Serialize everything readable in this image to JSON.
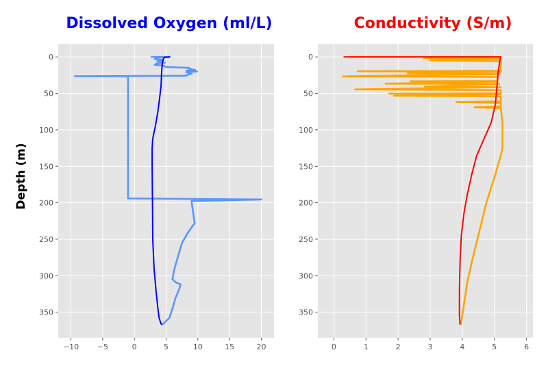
{
  "chart_data": [
    {
      "type": "line",
      "title": "Dissolved Oxygen (ml/L)",
      "title_color": "#0000ff",
      "ylabel": "Depth (m)",
      "xlabel": "",
      "xlim": [
        -12,
        22
      ],
      "ylim": [
        385,
        -18
      ],
      "y_inverted": true,
      "grid": true,
      "xticks": [
        -10,
        -5,
        0,
        5,
        10,
        15,
        20
      ],
      "yticks": [
        0,
        50,
        100,
        150,
        200,
        250,
        300,
        350
      ],
      "series": [
        {
          "color": "#5b96ff",
          "points": [
            [
              2.6,
              0
            ],
            [
              5.6,
              0
            ],
            [
              3.5,
              1
            ],
            [
              3.2,
              3
            ],
            [
              4.5,
              4
            ],
            [
              3.6,
              6
            ],
            [
              4.8,
              8
            ],
            [
              3.5,
              9
            ],
            [
              3.2,
              11
            ],
            [
              4.6,
              12
            ],
            [
              5.0,
              14
            ],
            [
              8.6,
              15
            ],
            [
              8.5,
              16
            ],
            [
              9.6,
              18
            ],
            [
              8.2,
              19
            ],
            [
              9.9,
              20
            ],
            [
              8.2,
              21
            ],
            [
              9.0,
              23
            ],
            [
              8.2,
              25
            ],
            [
              8.2,
              26
            ],
            [
              -9.4,
              26.5
            ],
            [
              -1,
              27
            ],
            [
              -1,
              80
            ],
            [
              -1,
              194
            ],
            [
              20,
              195.5
            ],
            [
              15,
              196.5
            ],
            [
              9,
              197.5
            ],
            [
              9.2,
              210
            ],
            [
              9.5,
              228
            ],
            [
              8.5,
              240
            ],
            [
              7.5,
              255
            ],
            [
              7.0,
              270
            ],
            [
              6.5,
              285
            ],
            [
              6.2,
              295
            ],
            [
              6.0,
              305
            ],
            [
              6.5,
              309
            ],
            [
              7.3,
              312
            ],
            [
              7.0,
              320
            ],
            [
              6.5,
              330
            ],
            [
              6.0,
              345
            ],
            [
              5.5,
              358
            ],
            [
              5.0,
              362
            ],
            [
              4.5,
              366
            ],
            [
              4.3,
              367
            ]
          ]
        },
        {
          "color": "#0000ff",
          "points": [
            [
              5.6,
              0
            ],
            [
              4.8,
              0.5
            ],
            [
              4.6,
              2
            ],
            [
              4.5,
              5
            ],
            [
              4.4,
              10
            ],
            [
              4.3,
              20
            ],
            [
              4.2,
              40
            ],
            [
              4.0,
              55
            ],
            [
              3.7,
              75
            ],
            [
              3.3,
              95
            ],
            [
              2.9,
              112
            ],
            [
              2.8,
              125
            ],
            [
              2.8,
              150
            ],
            [
              2.85,
              200
            ],
            [
              2.9,
              250
            ],
            [
              3.1,
              290
            ],
            [
              3.4,
              320
            ],
            [
              3.7,
              345
            ],
            [
              3.9,
              358
            ],
            [
              4.2,
              366
            ],
            [
              4.4,
              367
            ]
          ]
        }
      ]
    },
    {
      "type": "line",
      "title": "Conductivity (S/m)",
      "title_color": "#ff0000",
      "xlabel": "",
      "xlim": [
        -0.5,
        6.2
      ],
      "ylim": [
        385,
        -18
      ],
      "y_inverted": true,
      "grid": true,
      "xticks": [
        0,
        1,
        2,
        3,
        4,
        5,
        6
      ],
      "yticks": [
        0,
        50,
        100,
        150,
        200,
        250,
        300,
        350
      ],
      "series": [
        {
          "color": "#ffa500",
          "points": [
            [
              0.47,
              0
            ],
            [
              5.2,
              0
            ],
            [
              2.8,
              2
            ],
            [
              5.2,
              3
            ],
            [
              3.0,
              5
            ],
            [
              5.2,
              6
            ],
            [
              5.2,
              19
            ],
            [
              0.74,
              19.7
            ],
            [
              5.2,
              20.5
            ],
            [
              2.3,
              22.5
            ],
            [
              5.15,
              23.5
            ],
            [
              0.28,
              26.8
            ],
            [
              5.1,
              27.5
            ],
            [
              5.1,
              33
            ],
            [
              2.38,
              33.4
            ],
            [
              5.1,
              34
            ],
            [
              1.61,
              36.6
            ],
            [
              5.15,
              37
            ],
            [
              2.83,
              40.9
            ],
            [
              5.2,
              41.5
            ],
            [
              0.66,
              44.6
            ],
            [
              5.2,
              45.5
            ],
            [
              5.2,
              50
            ],
            [
              1.72,
              50.5
            ],
            [
              5.2,
              51
            ],
            [
              1.87,
              53.3
            ],
            [
              5.2,
              54
            ],
            [
              5.2,
              61
            ],
            [
              3.81,
              62
            ],
            [
              5.2,
              63
            ],
            [
              5.2,
              68
            ],
            [
              4.38,
              69
            ],
            [
              5.2,
              70
            ],
            [
              5.25,
              90
            ],
            [
              5.25,
              125
            ],
            [
              5.2,
              135
            ],
            [
              5.0,
              165
            ],
            [
              4.75,
              200
            ],
            [
              4.5,
              245
            ],
            [
              4.3,
              280
            ],
            [
              4.15,
              310
            ],
            [
              4.05,
              340
            ],
            [
              3.98,
              360
            ],
            [
              3.95,
              367
            ]
          ]
        },
        {
          "color": "#ff0000",
          "points": [
            [
              0.3,
              0
            ],
            [
              5.2,
              0
            ],
            [
              5.17,
              5
            ],
            [
              5.12,
              20
            ],
            [
              5.08,
              40
            ],
            [
              5.03,
              65
            ],
            [
              4.9,
              90
            ],
            [
              4.65,
              115
            ],
            [
              4.45,
              135
            ],
            [
              4.3,
              160
            ],
            [
              4.15,
              190
            ],
            [
              4.05,
              215
            ],
            [
              3.97,
              245
            ],
            [
              3.93,
              280
            ],
            [
              3.91,
              320
            ],
            [
              3.91,
              355
            ],
            [
              3.93,
              367
            ]
          ]
        }
      ]
    }
  ]
}
